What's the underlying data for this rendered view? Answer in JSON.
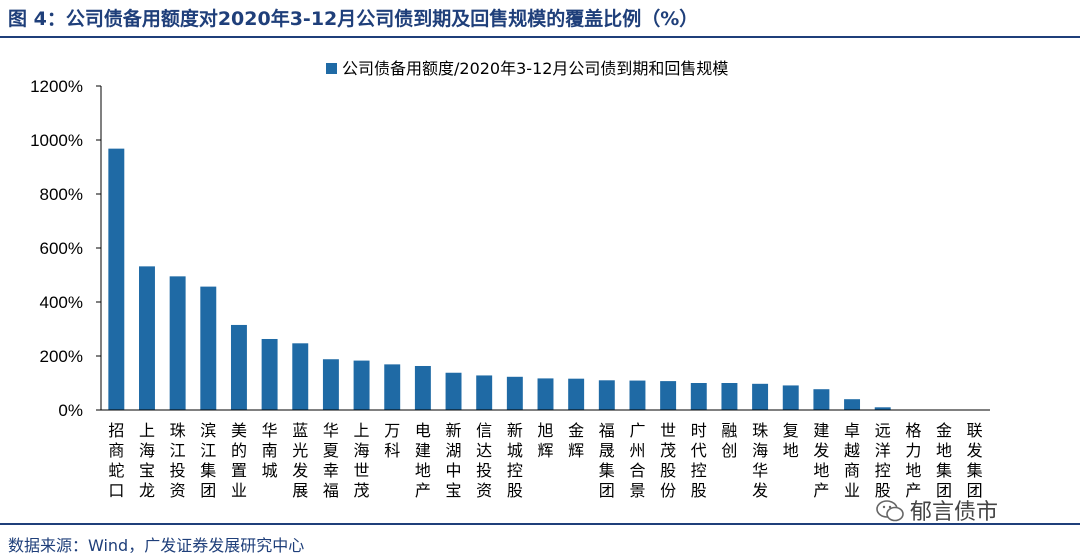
{
  "figure": {
    "title": "图 4：公司债备用额度对2020年3-12月公司债到期及回售规模的覆盖比例（%）",
    "source": "数据来源：Wind，广发证券发展研究中心",
    "watermark": "郁言债市"
  },
  "colors": {
    "bar": "#1f6aa5",
    "axis": "#000000",
    "accent": "#1f3f7a"
  },
  "chart_data": {
    "type": "bar",
    "title": "",
    "xlabel": "",
    "ylabel": "",
    "ylim": [
      0,
      1200
    ],
    "yticks": [
      0,
      200,
      400,
      600,
      800,
      1000,
      1200
    ],
    "ytick_labels": [
      "0%",
      "200%",
      "400%",
      "600%",
      "800%",
      "1000%",
      "1200%"
    ],
    "legend": {
      "placement": "top-center"
    },
    "grid": false,
    "categories": [
      "招商蛇口",
      "上海宝龙",
      "珠江投资",
      "滨江集团",
      "美的置业",
      "华南城",
      "蓝光发展",
      "华夏幸福",
      "上海世茂",
      "万科",
      "电建地产",
      "新湖中宝",
      "信达投资",
      "新城控股",
      "旭辉",
      "金辉",
      "福晟集团",
      "广州合景",
      "世茂股份",
      "时代控股",
      "融创",
      "珠海华发",
      "复地",
      "建发地产",
      "卓越商业",
      "远洋控股",
      "格力地产",
      "金地集团",
      "联发集团"
    ],
    "series": [
      {
        "name": "公司债备用额度/2020年3-12月公司债到期和回售规模",
        "values": [
          968,
          532,
          495,
          457,
          315,
          263,
          247,
          188,
          183,
          169,
          163,
          138,
          128,
          123,
          117,
          116,
          110,
          109,
          107,
          100,
          100,
          97,
          91,
          77,
          40,
          10,
          0,
          0,
          0
        ]
      }
    ]
  }
}
